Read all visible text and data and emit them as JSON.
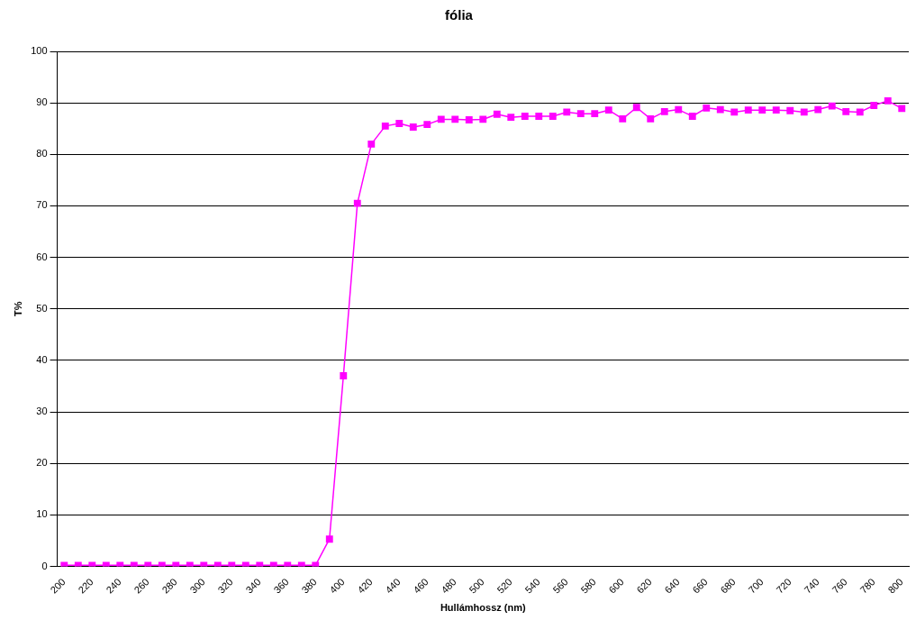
{
  "chart_data": {
    "type": "line",
    "title": "fólia",
    "xlabel": "Hullámhossz (nm)",
    "ylabel": "T%",
    "categories": [
      "200",
      null,
      "220",
      null,
      "240",
      null,
      "260",
      null,
      "280",
      null,
      "300",
      null,
      "320",
      null,
      "340",
      null,
      "360",
      null,
      "380",
      null,
      "400",
      null,
      "420",
      null,
      "440",
      null,
      "460",
      null,
      "480",
      null,
      "500",
      null,
      "520",
      null,
      "540",
      null,
      "560",
      null,
      "580",
      null,
      "600",
      null,
      "620",
      null,
      "640",
      null,
      "660",
      null,
      "680",
      null,
      "700",
      null,
      "720",
      null,
      "740",
      null,
      "760",
      null,
      "780",
      null,
      "800"
    ],
    "series": [
      {
        "color": "#ff00ff",
        "values": [
          0.2,
          0.2,
          0.2,
          0.2,
          0.2,
          0.2,
          0.2,
          0.2,
          0.2,
          0.2,
          0.2,
          0.2,
          0.2,
          0.2,
          0.2,
          0.2,
          0.2,
          0.2,
          0.2,
          5.3,
          37,
          70.5,
          82,
          85.5,
          86,
          85.3,
          85.8,
          86.8,
          86.8,
          86.7,
          86.8,
          87.8,
          87.2,
          87.4,
          87.4,
          87.4,
          88.2,
          87.9,
          87.9,
          88.6,
          86.9,
          89.1,
          86.9,
          88.3,
          88.7,
          87.4,
          89,
          88.7,
          88.2,
          88.6,
          88.6,
          88.6,
          88.5,
          88.2,
          88.7,
          89.4,
          88.3,
          88.2,
          89.5,
          90.4,
          88.9
        ]
      }
    ],
    "ylim": [
      0,
      100
    ],
    "yticks": [
      0,
      10,
      20,
      30,
      40,
      50,
      60,
      70,
      80,
      90,
      100
    ],
    "grid": "y",
    "legend": false,
    "marker": "square",
    "line_style": "solid"
  }
}
